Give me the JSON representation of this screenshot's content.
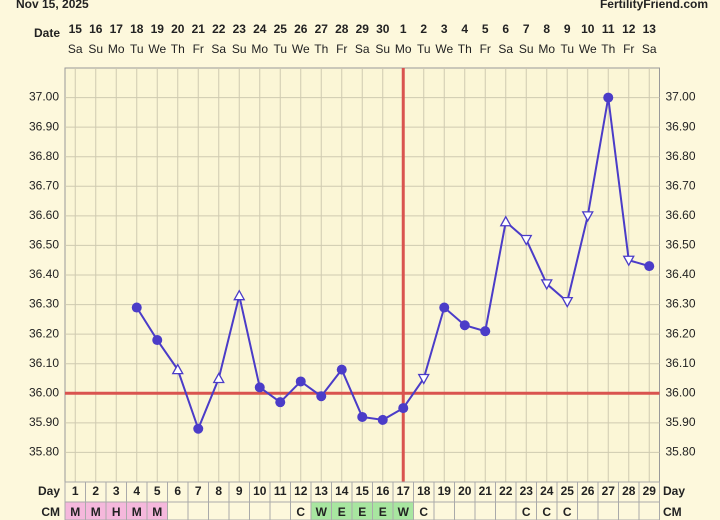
{
  "chart_data": {
    "type": "line",
    "title": "Nov 15, 2025",
    "site": "FertilityFriend.com",
    "date_label": "Date",
    "day_label": "Day",
    "cm_label": "CM",
    "dates": [
      "15",
      "16",
      "17",
      "18",
      "19",
      "20",
      "21",
      "22",
      "23",
      "24",
      "25",
      "26",
      "27",
      "28",
      "29",
      "30",
      "1",
      "2",
      "3",
      "4",
      "5",
      "6",
      "7",
      "8",
      "9",
      "10",
      "11",
      "12",
      "13"
    ],
    "weekdays": [
      "Sa",
      "Su",
      "Mo",
      "Tu",
      "We",
      "Th",
      "Fr",
      "Sa",
      "Su",
      "Mo",
      "Tu",
      "We",
      "Th",
      "Fr",
      "Sa",
      "Su",
      "Mo",
      "Tu",
      "We",
      "Th",
      "Fr",
      "Sa",
      "Su",
      "Mo",
      "Tu",
      "We",
      "Th",
      "Fr",
      "Sa"
    ],
    "categories": [
      "1",
      "2",
      "3",
      "4",
      "5",
      "6",
      "7",
      "8",
      "9",
      "10",
      "11",
      "12",
      "13",
      "14",
      "15",
      "16",
      "17",
      "18",
      "19",
      "20",
      "21",
      "22",
      "23",
      "24",
      "25",
      "26",
      "27",
      "28",
      "29"
    ],
    "series": [
      {
        "name": "Temperature",
        "color": "#4b3cc8",
        "values": [
          null,
          null,
          null,
          36.29,
          36.18,
          36.08,
          35.88,
          36.05,
          36.33,
          36.02,
          35.97,
          36.04,
          35.99,
          36.08,
          35.92,
          35.91,
          35.95,
          36.05,
          36.29,
          36.23,
          36.21,
          36.58,
          36.52,
          36.37,
          36.31,
          36.6,
          37.0,
          36.45,
          36.43
        ],
        "markers": [
          null,
          null,
          null,
          "dot",
          "dot",
          "open-up",
          "dot",
          "open-up",
          "open-up",
          "dot",
          "dot",
          "dot",
          "dot",
          "dot",
          "dot",
          "dot",
          "dot",
          "open-down",
          "dot",
          "dot",
          "dot",
          "open-up",
          "open-down",
          "open-down",
          "open-down",
          "open-down",
          "dot",
          "open-down",
          "dot"
        ]
      }
    ],
    "cm": [
      "M",
      "M",
      "H",
      "M",
      "M",
      null,
      null,
      null,
      null,
      null,
      null,
      "C",
      "W",
      "E",
      "E",
      "E",
      "W",
      "C",
      null,
      null,
      null,
      null,
      "C",
      "C",
      "C",
      null,
      null,
      null,
      null
    ],
    "cm_colors": [
      "#f5b8dc",
      "#f5b8dc",
      "#f5b8dc",
      "#f5b8dc",
      "#f5b8dc",
      null,
      null,
      null,
      null,
      null,
      null,
      null,
      "#a8e6a0",
      "#a8e6a0",
      "#a8e6a0",
      "#a8e6a0",
      "#a8e6a0",
      null,
      null,
      null,
      null,
      null,
      null,
      null,
      null,
      null,
      null,
      null,
      null
    ],
    "ylim": [
      35.7,
      37.1
    ],
    "yticks": [
      {
        "value": 35.8,
        "label": "35.80"
      },
      {
        "value": 35.9,
        "label": "35.90"
      },
      {
        "value": 36.0,
        "label": "36.00"
      },
      {
        "value": 36.1,
        "label": "36.10"
      },
      {
        "value": 36.2,
        "label": "36.20"
      },
      {
        "value": 36.3,
        "label": "36.30"
      },
      {
        "value": 36.4,
        "label": "36.40"
      },
      {
        "value": 36.5,
        "label": "36.50"
      },
      {
        "value": 36.6,
        "label": "36.60"
      },
      {
        "value": 36.7,
        "label": "36.70"
      },
      {
        "value": 36.8,
        "label": "36.80"
      },
      {
        "value": 36.9,
        "label": "36.90"
      },
      {
        "value": 37.0,
        "label": "37.00"
      }
    ],
    "coverline": 36.0,
    "coverline_color": "#d9534f",
    "ovulation_day_index": 16,
    "grid": true
  }
}
